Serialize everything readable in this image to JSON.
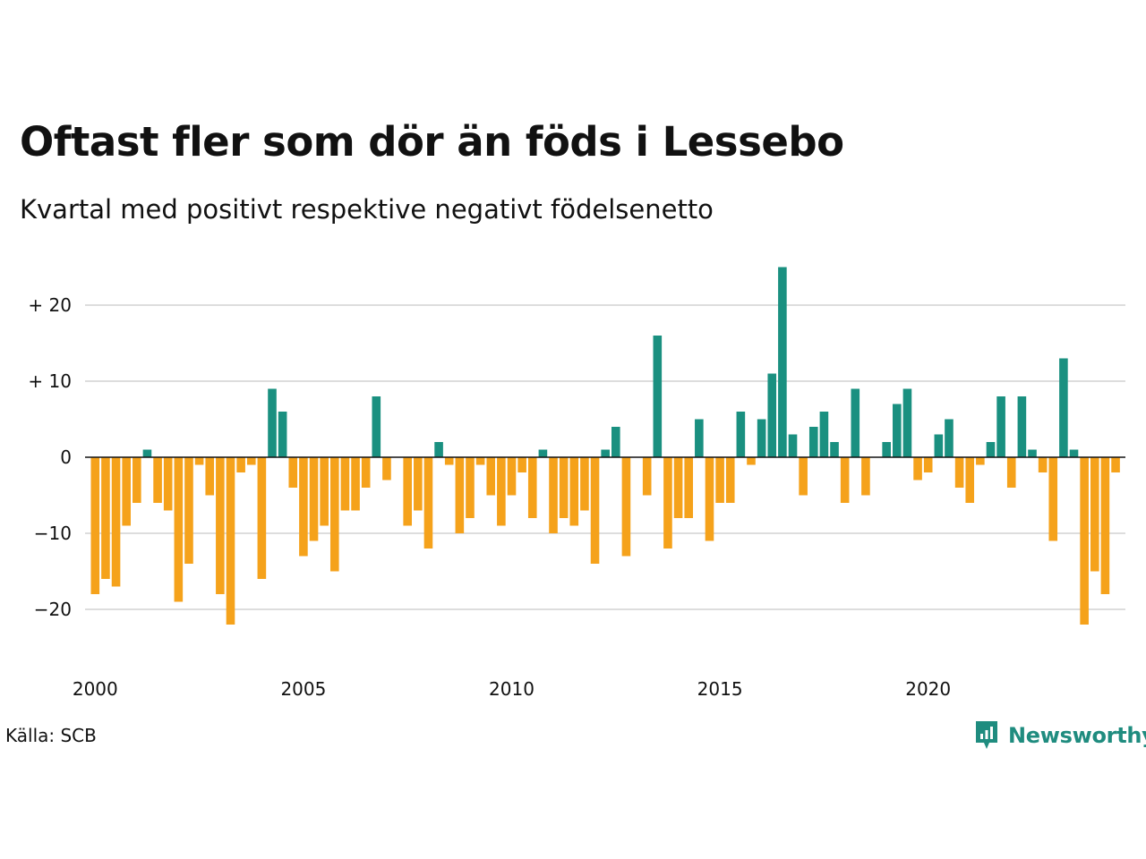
{
  "title": "Oftast fler som dör än föds i Lessebo",
  "subtitle": "Kvartal med positivt respektive negativt födelsenetto",
  "source": "Källa: SCB",
  "logo": {
    "text": "Newsworthy",
    "icon": "newsworthy-logo-icon"
  },
  "colors": {
    "positive": "#1a9080",
    "negative": "#f5a21b",
    "grid": "#dddddd",
    "zero_line": "#111111",
    "logo": "#1f8c7f"
  },
  "chart_data": {
    "type": "bar",
    "x_start": 2000,
    "x_step": "quarter",
    "x_ticks": [
      2000,
      2005,
      2010,
      2015,
      2020
    ],
    "y_ticks": [
      {
        "value": 20,
        "label": "+ 20"
      },
      {
        "value": 10,
        "label": "+ 10"
      },
      {
        "value": 0,
        "label": "0"
      },
      {
        "value": -10,
        "label": "−10"
      },
      {
        "value": -20,
        "label": "−20"
      }
    ],
    "ylim": [
      -26,
      25
    ],
    "grid": true,
    "series": [
      {
        "values": [
          -18,
          -16,
          -17,
          -9,
          -6,
          1,
          -6,
          -7,
          -19,
          -14,
          -1,
          -5,
          -18,
          -22,
          -2,
          -1,
          -16,
          9,
          6,
          -4,
          -13,
          -11,
          -9,
          -15,
          -7,
          -7,
          -4,
          8,
          -3,
          0,
          -9,
          -7,
          -12,
          2,
          -1,
          -10,
          -8,
          -1,
          -5,
          -9,
          -5,
          -2,
          -8,
          1,
          -10,
          -8,
          -9,
          -7,
          -14,
          1,
          4,
          -13,
          0,
          -5,
          16,
          -12,
          -8,
          -8,
          5,
          -11,
          -6,
          -6,
          6,
          -1,
          5,
          11,
          25,
          3,
          -5,
          4,
          6,
          2,
          -6,
          9,
          -5,
          0,
          2,
          7,
          9,
          -3,
          -2,
          3,
          5,
          -4,
          -6,
          -1,
          2,
          8,
          -4,
          8,
          1,
          -2,
          -11,
          13,
          1,
          -22,
          -15,
          -18,
          -2
        ]
      }
    ]
  }
}
